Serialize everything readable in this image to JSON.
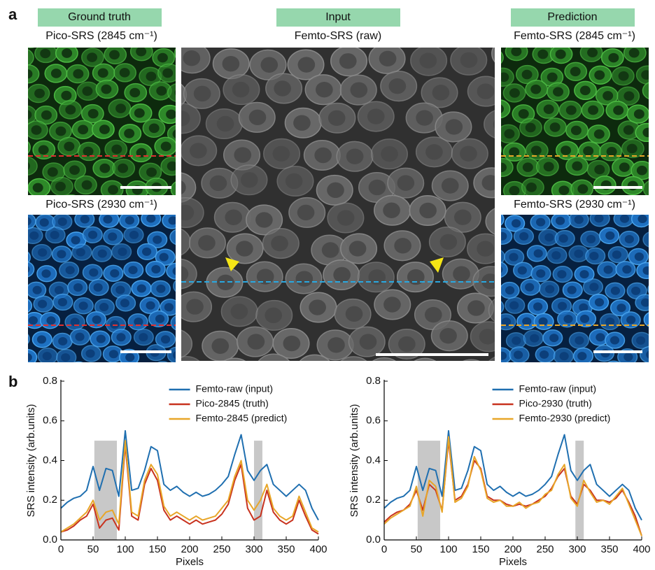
{
  "figure": {
    "panel_a": "a",
    "panel_b": "b",
    "headers": [
      "Ground truth",
      "Input",
      "Prediction"
    ],
    "image_titles": [
      "Pico-SRS (2845 cm⁻¹)",
      "Pico-SRS (2930 cm⁻¹)",
      "Femto-SRS (raw)",
      "Femto-SRS (2845 cm⁻¹)",
      "Femto-SRS (2930 cm⁻¹)"
    ]
  },
  "chart_data": [
    {
      "type": "line",
      "xlabel": "Pixels",
      "ylabel": "SRS intensity (arb.units)",
      "x": [
        0,
        10,
        20,
        30,
        40,
        50,
        60,
        70,
        80,
        90,
        100,
        110,
        120,
        130,
        140,
        150,
        160,
        170,
        180,
        190,
        200,
        210,
        220,
        230,
        240,
        250,
        260,
        270,
        280,
        290,
        300,
        310,
        320,
        330,
        340,
        350,
        360,
        370,
        380,
        390,
        400
      ],
      "series": [
        {
          "name": "Femto-raw (input)",
          "color": "#1f6fb0",
          "values": [
            0.16,
            0.19,
            0.21,
            0.22,
            0.25,
            0.37,
            0.25,
            0.36,
            0.35,
            0.22,
            0.55,
            0.25,
            0.26,
            0.35,
            0.47,
            0.45,
            0.28,
            0.25,
            0.27,
            0.24,
            0.22,
            0.24,
            0.22,
            0.23,
            0.25,
            0.28,
            0.32,
            0.43,
            0.53,
            0.35,
            0.3,
            0.35,
            0.38,
            0.28,
            0.25,
            0.22,
            0.25,
            0.28,
            0.25,
            0.16,
            0.1
          ]
        },
        {
          "name": "Pico-2845 (truth)",
          "color": "#c8321e",
          "values": [
            0.04,
            0.05,
            0.07,
            0.1,
            0.12,
            0.18,
            0.06,
            0.1,
            0.11,
            0.05,
            0.48,
            0.12,
            0.1,
            0.28,
            0.36,
            0.3,
            0.15,
            0.1,
            0.12,
            0.1,
            0.08,
            0.1,
            0.08,
            0.09,
            0.1,
            0.13,
            0.18,
            0.3,
            0.38,
            0.16,
            0.1,
            0.12,
            0.25,
            0.14,
            0.1,
            0.08,
            0.1,
            0.2,
            0.12,
            0.05,
            0.03
          ]
        },
        {
          "name": "Femto-2845 (predict)",
          "color": "#e8a628",
          "values": [
            0.04,
            0.06,
            0.08,
            0.11,
            0.14,
            0.2,
            0.1,
            0.14,
            0.15,
            0.08,
            0.5,
            0.14,
            0.12,
            0.3,
            0.38,
            0.33,
            0.17,
            0.12,
            0.14,
            0.12,
            0.1,
            0.12,
            0.1,
            0.11,
            0.12,
            0.16,
            0.2,
            0.32,
            0.4,
            0.2,
            0.15,
            0.2,
            0.28,
            0.16,
            0.12,
            0.1,
            0.12,
            0.22,
            0.14,
            0.06,
            0.04
          ]
        }
      ],
      "xlim": [
        0,
        400
      ],
      "ylim": [
        0,
        0.8
      ],
      "xticks": [
        0,
        50,
        100,
        150,
        200,
        250,
        300,
        350,
        400
      ],
      "yticks": [
        {
          "value": 0,
          "label": "0.0"
        },
        0.2,
        0.4,
        0.6,
        0.8
      ],
      "shaded_regions": [
        {
          "x": [
            52,
            87
          ],
          "y": [
            0,
            0.5
          ]
        },
        {
          "x": [
            300,
            313
          ],
          "y": [
            0,
            0.5
          ]
        }
      ],
      "shade_color": "#c8c8c8",
      "legend": "upper right"
    },
    {
      "type": "line",
      "xlabel": "Pixels",
      "ylabel": "SRS intensity (arb.units)",
      "x": [
        0,
        10,
        20,
        30,
        40,
        50,
        60,
        70,
        80,
        90,
        100,
        110,
        120,
        130,
        140,
        150,
        160,
        170,
        180,
        190,
        200,
        210,
        220,
        230,
        240,
        250,
        260,
        270,
        280,
        290,
        300,
        310,
        320,
        330,
        340,
        350,
        360,
        370,
        380,
        390,
        400
      ],
      "series": [
        {
          "name": "Femto-raw (input)",
          "color": "#1f6fb0",
          "values": [
            0.16,
            0.19,
            0.21,
            0.22,
            0.25,
            0.37,
            0.25,
            0.36,
            0.35,
            0.22,
            0.55,
            0.25,
            0.26,
            0.35,
            0.47,
            0.45,
            0.28,
            0.25,
            0.27,
            0.24,
            0.22,
            0.24,
            0.22,
            0.23,
            0.25,
            0.28,
            0.32,
            0.43,
            0.53,
            0.35,
            0.3,
            0.35,
            0.38,
            0.28,
            0.25,
            0.22,
            0.25,
            0.28,
            0.25,
            0.16,
            0.1
          ]
        },
        {
          "name": "Pico-2930 (truth)",
          "color": "#c8321e",
          "values": [
            0.09,
            0.12,
            0.14,
            0.15,
            0.18,
            0.25,
            0.15,
            0.28,
            0.25,
            0.15,
            0.5,
            0.2,
            0.22,
            0.28,
            0.4,
            0.36,
            0.22,
            0.2,
            0.2,
            0.18,
            0.17,
            0.18,
            0.17,
            0.18,
            0.2,
            0.22,
            0.26,
            0.32,
            0.36,
            0.22,
            0.18,
            0.28,
            0.25,
            0.2,
            0.2,
            0.19,
            0.21,
            0.25,
            0.19,
            0.12,
            0.02
          ]
        },
        {
          "name": "Femto-2930 (predict)",
          "color": "#e8a628",
          "values": [
            0.08,
            0.11,
            0.13,
            0.15,
            0.17,
            0.27,
            0.12,
            0.3,
            0.27,
            0.14,
            0.52,
            0.19,
            0.21,
            0.27,
            0.42,
            0.35,
            0.21,
            0.19,
            0.2,
            0.17,
            0.17,
            0.19,
            0.16,
            0.18,
            0.19,
            0.23,
            0.25,
            0.33,
            0.38,
            0.21,
            0.17,
            0.3,
            0.24,
            0.19,
            0.2,
            0.18,
            0.22,
            0.26,
            0.18,
            0.1,
            0.02
          ]
        }
      ],
      "xlim": [
        0,
        400
      ],
      "ylim": [
        0,
        0.8
      ],
      "xticks": [
        0,
        50,
        100,
        150,
        200,
        250,
        300,
        350,
        400
      ],
      "yticks": [
        {
          "value": 0,
          "label": "0.0"
        },
        0.2,
        0.4,
        0.6,
        0.8
      ],
      "shaded_regions": [
        {
          "x": [
            52,
            87
          ],
          "y": [
            0,
            0.5
          ]
        },
        {
          "x": [
            297,
            310
          ],
          "y": [
            0,
            0.5
          ]
        }
      ],
      "shade_color": "#c8c8c8",
      "legend": "upper right"
    }
  ]
}
